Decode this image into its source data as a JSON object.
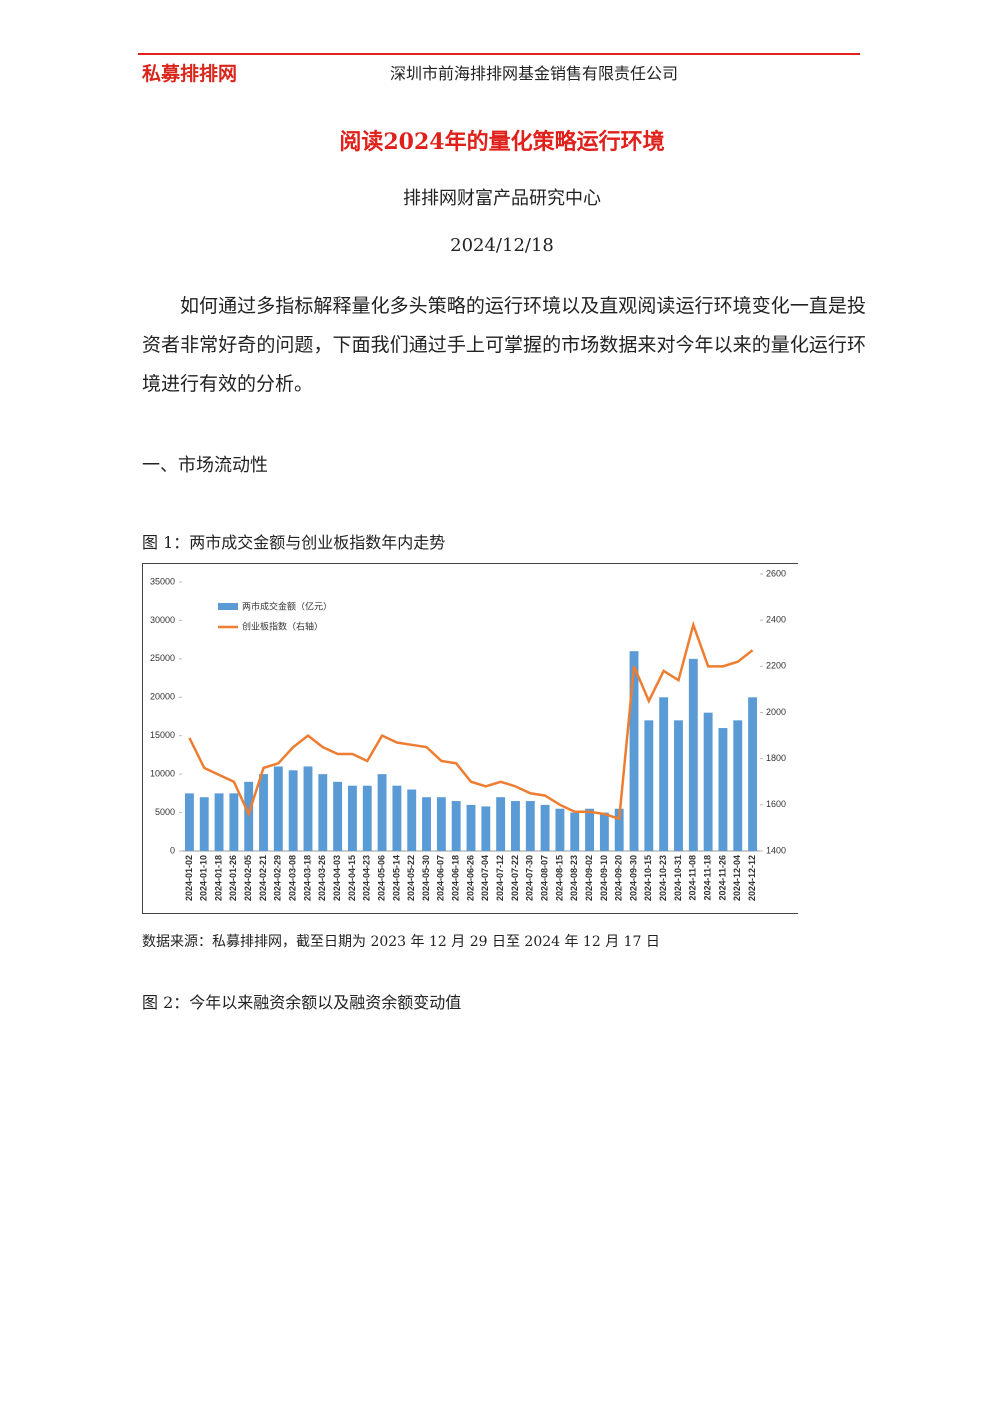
{
  "header": {
    "logo": "私募排排网",
    "company": "深圳市前海排排网基金销售有限责任公司"
  },
  "title": "阅读2024年的量化策略运行环境",
  "author": "排排网财富产品研究中心",
  "date": "2024/12/18",
  "intro": "如何通过多指标解释量化多头策略的运行环境以及直观阅读运行环境变化一直是投资者非常好奇的问题，下面我们通过手上可掌握的市场数据来对今年以来的量化运行环境进行有效的分析。",
  "section1": "一、市场流动性",
  "figure1": {
    "caption": "图 1：两市成交金额与创业板指数年内走势",
    "source": "数据来源：私募排排网，截至日期为 2023 年 12 月 29 日至 2024 年 12 月 17 日"
  },
  "figure2": {
    "caption": "图 2：今年以来融资余额以及融资余额变动值"
  },
  "chart_data": {
    "type": "bar-line",
    "categories": [
      "2024-01-02",
      "2024-01-10",
      "2024-01-18",
      "2024-01-26",
      "2024-02-05",
      "2024-02-21",
      "2024-02-29",
      "2024-03-08",
      "2024-03-18",
      "2024-03-26",
      "2024-04-03",
      "2024-04-15",
      "2024-04-23",
      "2024-05-06",
      "2024-05-14",
      "2024-05-22",
      "2024-05-30",
      "2024-06-07",
      "2024-06-18",
      "2024-06-26",
      "2024-07-04",
      "2024-07-12",
      "2024-07-22",
      "2024-07-30",
      "2024-08-07",
      "2024-08-15",
      "2024-08-23",
      "2024-09-02",
      "2024-09-10",
      "2024-09-20",
      "2024-09-30",
      "2024-10-15",
      "2024-10-23",
      "2024-10-31",
      "2024-11-08",
      "2024-11-18",
      "2024-11-26",
      "2024-12-04",
      "2024-12-12"
    ],
    "series": [
      {
        "name": "两市成交金额（亿元）",
        "color": "#5b9bd5",
        "type": "bar",
        "values": [
          7500,
          7000,
          7500,
          7500,
          9000,
          10000,
          11000,
          10500,
          11000,
          10000,
          9000,
          8500,
          8500,
          10000,
          8500,
          8000,
          7000,
          7000,
          6500,
          6000,
          5800,
          7000,
          6500,
          6500,
          6000,
          5500,
          5000,
          5500,
          5000,
          5500,
          26000,
          17000,
          20000,
          17000,
          25000,
          18000,
          16000,
          17000,
          20000
        ]
      },
      {
        "name": "创业板指数（右轴）",
        "color": "#ed7d31",
        "type": "line",
        "axis": "y2",
        "values": [
          1890,
          1760,
          1730,
          1700,
          1560,
          1760,
          1780,
          1850,
          1900,
          1850,
          1820,
          1820,
          1790,
          1900,
          1870,
          1860,
          1850,
          1790,
          1780,
          1700,
          1680,
          1700,
          1680,
          1650,
          1640,
          1600,
          1570,
          1570,
          1560,
          1540,
          2200,
          2050,
          2180,
          2140,
          2380,
          2200,
          2200,
          2220,
          2270
        ]
      }
    ],
    "ylim": [
      0,
      35000
    ],
    "yticks": [
      0,
      5000,
      10000,
      15000,
      20000,
      25000,
      30000,
      35000
    ],
    "y2lim": [
      1400,
      2600
    ],
    "y2ticks": [
      1400,
      1600,
      1800,
      2000,
      2200,
      2400,
      2600
    ],
    "legend": "upper-left"
  }
}
